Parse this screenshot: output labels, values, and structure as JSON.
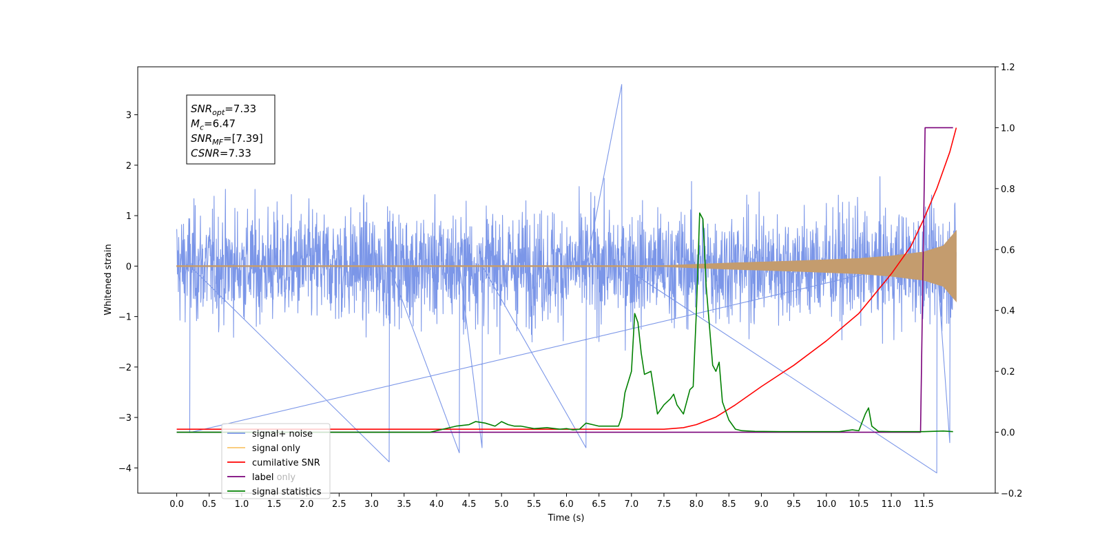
{
  "chart_data": {
    "type": "line",
    "xlabel": "Time (s)",
    "ylabel_left": "Whitened strain",
    "ylabel_right": "",
    "xlim": [
      -0.6,
      12.6
    ],
    "ylim_left": [
      -4.5,
      3.95
    ],
    "ylim_right": [
      -0.2,
      1.2
    ],
    "grid": false,
    "legend_position": "lower-left",
    "x_ticks": [
      "0.0",
      "0.5",
      "1.0",
      "1.5",
      "2.0",
      "2.5",
      "3.0",
      "3.5",
      "4.0",
      "4.5",
      "5.0",
      "5.5",
      "6.0",
      "6.5",
      "7.0",
      "7.5",
      "8.0",
      "8.5",
      "9.0",
      "9.5",
      "10.0",
      "10.5",
      "11.0",
      "11.5"
    ],
    "y_ticks_left": [
      "3",
      "2",
      "1",
      "0",
      "−1",
      "−2",
      "−3",
      "−4"
    ],
    "y_ticks_right": [
      "1.2",
      "1.0",
      "0.8",
      "0.6",
      "0.4",
      "0.2",
      "0.0",
      "−0.2"
    ],
    "annotation": [
      {
        "var": "SNR",
        "sub": "opt",
        "text": "=7.33"
      },
      {
        "var": "M",
        "sub": "c",
        "text": "=6.47"
      },
      {
        "var": "SNR",
        "sub": "MF",
        "text": "=[7.39]"
      },
      {
        "var": "CSNR",
        "sub": "",
        "text": "=7.33"
      }
    ],
    "legend": [
      {
        "label": "signal+ noise",
        "color": "#7b96e8"
      },
      {
        "label": "signal only",
        "color": "#f9c56b"
      },
      {
        "label": "cumilative SNR",
        "color": "#ff0000"
      },
      {
        "label": "label",
        "color": "#7a007a"
      },
      {
        "label": "label only",
        "color": "#7a007a"
      },
      {
        "label": "signal statistics",
        "color": "#008000"
      }
    ],
    "series": [
      {
        "name": "signal+ noise",
        "axis": "left",
        "color": "#7b96e8",
        "description": "noisy whitened strain, approx. range -3.9 to 3.6",
        "x_range": [
          0.0,
          12.0
        ],
        "envelope": {
          "typical_max": 2.0,
          "typical_min": -2.0
        },
        "extremes": [
          [
            0.2,
            -3.3
          ],
          [
            3.27,
            -3.88
          ],
          [
            4.35,
            -3.7
          ],
          [
            4.7,
            -3.6
          ],
          [
            6.3,
            -3.6
          ],
          [
            6.85,
            3.6
          ],
          [
            11.7,
            -4.1
          ],
          [
            11.9,
            -3.5
          ]
        ]
      },
      {
        "name": "signal only",
        "axis": "left",
        "color": "#c49c6e",
        "description": "chirp signal, amplitude growing toward merger",
        "x_range": [
          0.0,
          12.0
        ],
        "amplitude": [
          [
            0.0,
            0.01
          ],
          [
            7.5,
            0.01
          ],
          [
            8.5,
            0.06
          ],
          [
            9.5,
            0.1
          ],
          [
            10.5,
            0.15
          ],
          [
            11.0,
            0.2
          ],
          [
            11.5,
            0.28
          ],
          [
            11.8,
            0.4
          ],
          [
            12.0,
            0.7
          ]
        ]
      },
      {
        "name": "cumilative SNR",
        "axis": "right",
        "color": "#ff0000",
        "x": [
          0.0,
          7.5,
          7.8,
          8.0,
          8.3,
          8.6,
          9.0,
          9.5,
          10.0,
          10.5,
          11.0,
          11.3,
          11.5,
          11.7,
          11.9,
          12.0
        ],
        "values": [
          0.01,
          0.01,
          0.015,
          0.025,
          0.05,
          0.09,
          0.15,
          0.22,
          0.3,
          0.39,
          0.52,
          0.61,
          0.7,
          0.8,
          0.92,
          1.0
        ]
      },
      {
        "name": "label",
        "axis": "right",
        "color": "#7a007a",
        "x": [
          0.0,
          11.45,
          11.52,
          11.55,
          11.95
        ],
        "values": [
          0.0,
          0.0,
          1.0,
          1.0,
          1.0
        ]
      },
      {
        "name": "signal statistics",
        "axis": "right",
        "color": "#008000",
        "x": [
          0.0,
          1.0,
          2.0,
          3.0,
          3.9,
          4.1,
          4.3,
          4.5,
          4.6,
          4.75,
          4.9,
          5.0,
          5.1,
          5.2,
          5.3,
          5.5,
          5.7,
          5.9,
          6.0,
          6.1,
          6.2,
          6.3,
          6.4,
          6.5,
          6.6,
          6.8,
          6.85,
          6.9,
          7.0,
          7.05,
          7.1,
          7.15,
          7.2,
          7.3,
          7.4,
          7.5,
          7.6,
          7.65,
          7.7,
          7.8,
          7.9,
          7.95,
          8.0,
          8.05,
          8.1,
          8.15,
          8.25,
          8.3,
          8.35,
          8.4,
          8.5,
          8.6,
          8.7,
          8.9,
          9.3,
          9.8,
          10.2,
          10.4,
          10.5,
          10.6,
          10.65,
          10.7,
          10.8,
          11.0,
          11.5,
          11.8,
          11.95
        ],
        "values": [
          0.0,
          0.0,
          0.0,
          0.0,
          0.0,
          0.01,
          0.02,
          0.025,
          0.035,
          0.03,
          0.02,
          0.035,
          0.025,
          0.02,
          0.02,
          0.012,
          0.015,
          0.01,
          0.012,
          0.008,
          0.01,
          0.03,
          0.025,
          0.02,
          0.02,
          0.02,
          0.05,
          0.13,
          0.2,
          0.39,
          0.36,
          0.26,
          0.19,
          0.2,
          0.06,
          0.09,
          0.11,
          0.125,
          0.09,
          0.06,
          0.14,
          0.15,
          0.4,
          0.72,
          0.7,
          0.48,
          0.22,
          0.2,
          0.23,
          0.1,
          0.04,
          0.01,
          0.005,
          0.003,
          0.002,
          0.002,
          0.002,
          0.008,
          0.005,
          0.06,
          0.08,
          0.02,
          0.003,
          0.002,
          0.002,
          0.004,
          0.002
        ]
      }
    ]
  }
}
